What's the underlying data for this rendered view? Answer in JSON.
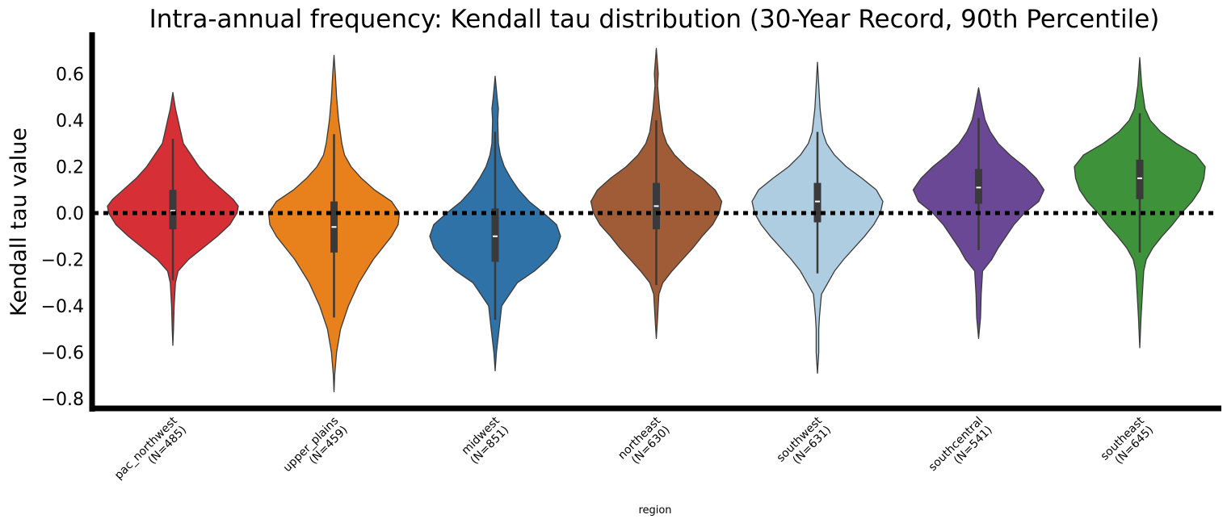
{
  "chart_data": {
    "type": "violin",
    "title": "Intra-annual frequency: Kendall tau distribution (30-Year Record, 90th Percentile)",
    "xlabel": "region",
    "ylabel": "Kendall tau value",
    "ylim": [
      -0.85,
      0.78
    ],
    "yticks": [
      -0.8,
      -0.6,
      -0.4,
      -0.2,
      0.0,
      0.2,
      0.4,
      0.6
    ],
    "ytick_labels": [
      "−0.8",
      "−0.6",
      "−0.4",
      "−0.2",
      "0.0",
      "0.2",
      "0.4",
      "0.6"
    ],
    "reference_line": {
      "y": 0.0,
      "style": "dotted",
      "color": "#000000"
    },
    "grid": false,
    "categories": [
      {
        "name": "pac_northwest",
        "n_label": "(N=485)",
        "color": "#d62f35",
        "min": -0.57,
        "max": 0.52,
        "q1": -0.07,
        "median": 0.01,
        "q3": 0.1,
        "whisker_low": -0.29,
        "whisker_high": 0.32,
        "density": [
          [
            -0.57,
            0.0
          ],
          [
            -0.5,
            0.01
          ],
          [
            -0.4,
            0.02
          ],
          [
            -0.3,
            0.04
          ],
          [
            -0.25,
            0.08
          ],
          [
            -0.2,
            0.24
          ],
          [
            -0.15,
            0.46
          ],
          [
            -0.1,
            0.68
          ],
          [
            -0.05,
            0.87
          ],
          [
            0.0,
            0.98
          ],
          [
            0.03,
            1.0
          ],
          [
            0.06,
            0.92
          ],
          [
            0.1,
            0.76
          ],
          [
            0.15,
            0.56
          ],
          [
            0.2,
            0.4
          ],
          [
            0.25,
            0.28
          ],
          [
            0.3,
            0.16
          ],
          [
            0.35,
            0.12
          ],
          [
            0.4,
            0.08
          ],
          [
            0.45,
            0.04
          ],
          [
            0.52,
            0.0
          ]
        ]
      },
      {
        "name": "upper_plains",
        "n_label": "(N=459)",
        "color": "#e8811c",
        "min": -0.77,
        "max": 0.68,
        "q1": -0.17,
        "median": -0.06,
        "q3": 0.05,
        "whisker_low": -0.45,
        "whisker_high": 0.34,
        "density": [
          [
            -0.77,
            0.0
          ],
          [
            -0.7,
            0.01
          ],
          [
            -0.6,
            0.04
          ],
          [
            -0.5,
            0.1
          ],
          [
            -0.4,
            0.22
          ],
          [
            -0.3,
            0.38
          ],
          [
            -0.2,
            0.6
          ],
          [
            -0.1,
            0.88
          ],
          [
            -0.05,
            0.98
          ],
          [
            0.0,
            1.0
          ],
          [
            0.05,
            0.88
          ],
          [
            0.1,
            0.62
          ],
          [
            0.15,
            0.42
          ],
          [
            0.2,
            0.26
          ],
          [
            0.25,
            0.16
          ],
          [
            0.3,
            0.12
          ],
          [
            0.4,
            0.07
          ],
          [
            0.5,
            0.04
          ],
          [
            0.6,
            0.02
          ],
          [
            0.68,
            0.0
          ]
        ]
      },
      {
        "name": "midwest",
        "n_label": "(N=851)",
        "color": "#2e72a8",
        "min": -0.68,
        "max": 0.59,
        "q1": -0.21,
        "median": -0.1,
        "q3": 0.02,
        "whisker_low": -0.46,
        "whisker_high": 0.35,
        "density": [
          [
            -0.68,
            0.0
          ],
          [
            -0.6,
            0.02
          ],
          [
            -0.5,
            0.06
          ],
          [
            -0.4,
            0.1
          ],
          [
            -0.3,
            0.34
          ],
          [
            -0.25,
            0.6
          ],
          [
            -0.2,
            0.8
          ],
          [
            -0.15,
            0.94
          ],
          [
            -0.1,
            1.0
          ],
          [
            -0.05,
            0.94
          ],
          [
            0.0,
            0.74
          ],
          [
            0.05,
            0.52
          ],
          [
            0.1,
            0.36
          ],
          [
            0.15,
            0.24
          ],
          [
            0.2,
            0.14
          ],
          [
            0.25,
            0.08
          ],
          [
            0.3,
            0.05
          ],
          [
            0.4,
            0.04
          ],
          [
            0.45,
            0.05
          ],
          [
            0.5,
            0.03
          ],
          [
            0.59,
            0.0
          ]
        ]
      },
      {
        "name": "northeast",
        "n_label": "(N=630)",
        "color": "#a05c36",
        "min": -0.54,
        "max": 0.71,
        "q1": -0.07,
        "median": 0.03,
        "q3": 0.13,
        "whisker_low": -0.31,
        "whisker_high": 0.4,
        "density": [
          [
            -0.54,
            0.0
          ],
          [
            -0.45,
            0.02
          ],
          [
            -0.35,
            0.04
          ],
          [
            -0.3,
            0.1
          ],
          [
            -0.25,
            0.24
          ],
          [
            -0.2,
            0.4
          ],
          [
            -0.15,
            0.56
          ],
          [
            -0.1,
            0.7
          ],
          [
            -0.05,
            0.86
          ],
          [
            0.0,
            0.96
          ],
          [
            0.05,
            1.0
          ],
          [
            0.1,
            0.9
          ],
          [
            0.15,
            0.7
          ],
          [
            0.2,
            0.46
          ],
          [
            0.25,
            0.28
          ],
          [
            0.3,
            0.16
          ],
          [
            0.35,
            0.1
          ],
          [
            0.45,
            0.05
          ],
          [
            0.55,
            0.02
          ],
          [
            0.6,
            0.03
          ],
          [
            0.71,
            0.0
          ]
        ]
      },
      {
        "name": "southwest",
        "n_label": "(N=631)",
        "color": "#aecde1",
        "min": -0.69,
        "max": 0.65,
        "q1": -0.04,
        "median": 0.05,
        "q3": 0.13,
        "whisker_low": -0.26,
        "whisker_high": 0.35,
        "density": [
          [
            -0.69,
            0.0
          ],
          [
            -0.6,
            0.02
          ],
          [
            -0.5,
            0.02
          ],
          [
            -0.45,
            0.03
          ],
          [
            -0.35,
            0.06
          ],
          [
            -0.3,
            0.16
          ],
          [
            -0.25,
            0.26
          ],
          [
            -0.2,
            0.4
          ],
          [
            -0.15,
            0.56
          ],
          [
            -0.1,
            0.72
          ],
          [
            -0.05,
            0.86
          ],
          [
            0.0,
            0.96
          ],
          [
            0.05,
            1.0
          ],
          [
            0.1,
            0.9
          ],
          [
            0.15,
            0.68
          ],
          [
            0.2,
            0.44
          ],
          [
            0.25,
            0.26
          ],
          [
            0.3,
            0.14
          ],
          [
            0.35,
            0.08
          ],
          [
            0.45,
            0.04
          ],
          [
            0.55,
            0.02
          ],
          [
            0.65,
            0.0
          ]
        ]
      },
      {
        "name": "southcentral",
        "n_label": "(N=541)",
        "color": "#6b4895",
        "min": -0.54,
        "max": 0.54,
        "q1": 0.04,
        "median": 0.11,
        "q3": 0.19,
        "whisker_low": -0.16,
        "whisker_high": 0.41,
        "density": [
          [
            -0.54,
            0.0
          ],
          [
            -0.45,
            0.03
          ],
          [
            -0.35,
            0.04
          ],
          [
            -0.25,
            0.06
          ],
          [
            -0.2,
            0.2
          ],
          [
            -0.15,
            0.3
          ],
          [
            -0.1,
            0.42
          ],
          [
            -0.05,
            0.54
          ],
          [
            0.0,
            0.7
          ],
          [
            0.05,
            0.92
          ],
          [
            0.1,
            1.0
          ],
          [
            0.15,
            0.88
          ],
          [
            0.2,
            0.7
          ],
          [
            0.25,
            0.48
          ],
          [
            0.3,
            0.3
          ],
          [
            0.35,
            0.18
          ],
          [
            0.4,
            0.1
          ],
          [
            0.45,
            0.06
          ],
          [
            0.54,
            0.0
          ]
        ]
      },
      {
        "name": "southeast",
        "n_label": "(N=645)",
        "color": "#3d923a",
        "min": -0.58,
        "max": 0.67,
        "q1": 0.06,
        "median": 0.15,
        "q3": 0.23,
        "whisker_low": -0.17,
        "whisker_high": 0.43,
        "density": [
          [
            -0.58,
            0.0
          ],
          [
            -0.45,
            0.02
          ],
          [
            -0.35,
            0.04
          ],
          [
            -0.25,
            0.06
          ],
          [
            -0.2,
            0.1
          ],
          [
            -0.15,
            0.2
          ],
          [
            -0.1,
            0.34
          ],
          [
            -0.05,
            0.5
          ],
          [
            0.0,
            0.64
          ],
          [
            0.05,
            0.8
          ],
          [
            0.1,
            0.92
          ],
          [
            0.15,
            0.98
          ],
          [
            0.2,
            1.0
          ],
          [
            0.25,
            0.86
          ],
          [
            0.3,
            0.56
          ],
          [
            0.35,
            0.32
          ],
          [
            0.4,
            0.16
          ],
          [
            0.45,
            0.08
          ],
          [
            0.55,
            0.03
          ],
          [
            0.67,
            0.0
          ]
        ]
      }
    ]
  }
}
